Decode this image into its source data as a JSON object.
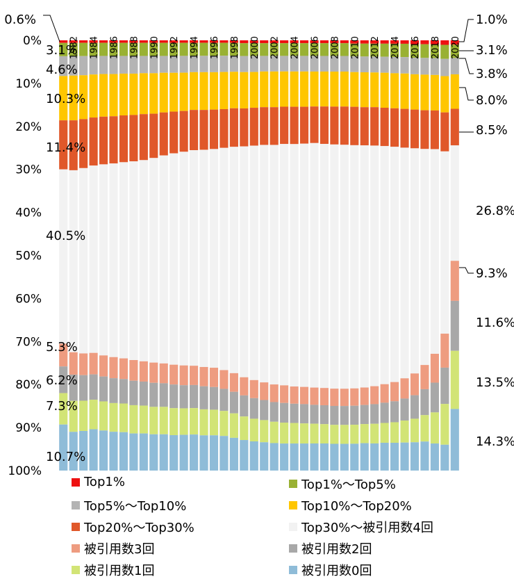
{
  "chart_data": {
    "type": "bar",
    "stacked": true,
    "normalized": true,
    "years": [
      1981,
      1982,
      1983,
      1984,
      1985,
      1986,
      1987,
      1988,
      1989,
      1990,
      1991,
      1992,
      1993,
      1994,
      1995,
      1996,
      1997,
      1998,
      1999,
      2000,
      2001,
      2002,
      2003,
      2004,
      2005,
      2006,
      2007,
      2008,
      2009,
      2010,
      2011,
      2012,
      2013,
      2014,
      2015,
      2016,
      2017,
      2018,
      2019,
      2020
    ],
    "x_tick_labels": [
      "1982",
      "1984",
      "1986",
      "1988",
      "1990",
      "1992",
      "1994",
      "1996",
      "1998",
      "2000",
      "2002",
      "2004",
      "2006",
      "2008",
      "2010",
      "2012",
      "2014",
      "2016",
      "2018",
      "2020"
    ],
    "y_tick_labels": [
      "0%",
      "10%",
      "20%",
      "30%",
      "40%",
      "50%",
      "60%",
      "70%",
      "80%",
      "90%",
      "100%"
    ],
    "ylim": [
      0,
      100
    ],
    "series": [
      {
        "name": "Top1%",
        "color": "#ee1111",
        "values": [
          0.6,
          0.6,
          0.6,
          0.6,
          0.6,
          0.6,
          0.6,
          0.6,
          0.6,
          0.6,
          0.6,
          0.6,
          0.6,
          0.6,
          0.6,
          0.6,
          0.6,
          0.6,
          0.7,
          0.7,
          0.7,
          0.7,
          0.7,
          0.7,
          0.7,
          0.7,
          0.7,
          0.7,
          0.7,
          0.8,
          0.8,
          0.8,
          0.8,
          0.8,
          0.8,
          0.9,
          0.9,
          0.9,
          1.0,
          1.0
        ]
      },
      {
        "name": "Top1%～Top5%",
        "color": "#99b133",
        "values": [
          3.1,
          3.1,
          3.1,
          3.1,
          3.1,
          3.1,
          3.1,
          3.1,
          3.1,
          3.1,
          3.1,
          3.1,
          3.1,
          3.1,
          3.1,
          3.1,
          3.1,
          3.1,
          3.1,
          3.1,
          3.1,
          3.1,
          3.1,
          3.1,
          3.1,
          3.1,
          3.1,
          3.1,
          3.1,
          3.1,
          3.1,
          3.1,
          3.1,
          3.1,
          3.1,
          3.1,
          3.1,
          3.1,
          3.1,
          3.1
        ]
      },
      {
        "name": "Top5%～Top10%",
        "color": "#b4b4b4",
        "values": [
          4.6,
          4.5,
          4.5,
          4.4,
          4.3,
          4.3,
          4.2,
          4.2,
          4.1,
          4.1,
          4.0,
          4.0,
          4.0,
          3.9,
          3.9,
          3.9,
          3.9,
          3.9,
          3.9,
          3.9,
          3.8,
          3.8,
          3.8,
          3.8,
          3.8,
          3.8,
          3.8,
          3.8,
          3.8,
          3.8,
          3.8,
          3.8,
          3.8,
          3.8,
          3.8,
          3.8,
          3.8,
          3.8,
          3.8,
          3.8
        ]
      },
      {
        "name": "Top10%～Top20%",
        "color": "#ffc600",
        "values": [
          10.3,
          10.4,
          10.3,
          10.2,
          10.1,
          10.0,
          9.9,
          9.8,
          9.7,
          9.6,
          9.4,
          9.2,
          9.1,
          9.0,
          9.0,
          8.9,
          8.9,
          8.8,
          8.8,
          8.7,
          8.7,
          8.7,
          8.6,
          8.6,
          8.6,
          8.5,
          8.5,
          8.5,
          8.5,
          8.4,
          8.4,
          8.3,
          8.3,
          8.2,
          8.2,
          8.1,
          8.1,
          8.0,
          8.0,
          8.0
        ]
      },
      {
        "name": "Top20%～Top30%",
        "color": "#e0582a",
        "values": [
          11.4,
          11.6,
          11.5,
          11.4,
          11.3,
          11.2,
          11.1,
          11.0,
          10.9,
          10.5,
          10.2,
          9.9,
          9.7,
          9.6,
          9.5,
          9.4,
          9.3,
          9.3,
          9.2,
          9.2,
          9.2,
          9.2,
          9.1,
          9.1,
          9.0,
          8.9,
          9.1,
          9.2,
          9.3,
          9.3,
          9.2,
          9.2,
          9.1,
          9.0,
          9.0,
          8.9,
          8.8,
          8.7,
          8.6,
          8.5
        ]
      },
      {
        "name": "Top30%～被引用数4回",
        "color": "#f2f2f2",
        "values": [
          40.5,
          42.3,
          43.5,
          44.4,
          45.3,
          45.9,
          46.5,
          47.1,
          47.7,
          48.5,
          49.3,
          50.1,
          50.8,
          51.4,
          51.8,
          52.1,
          53.3,
          54.6,
          55.9,
          57.0,
          57.9,
          58.4,
          58.9,
          59.1,
          59.3,
          59.5,
          59.4,
          59.3,
          59.3,
          58.9,
          58.3,
          57.6,
          56.5,
          55.0,
          53.5,
          51.7,
          49.1,
          46.1,
          40.2,
          26.8
        ]
      },
      {
        "name": "被引用数3回",
        "color": "#ee9c80",
        "values": [
          5.3,
          5.2,
          5.1,
          5.1,
          5.0,
          5.0,
          4.9,
          4.9,
          4.8,
          4.8,
          4.7,
          4.7,
          4.7,
          4.6,
          4.6,
          4.6,
          4.5,
          4.5,
          4.4,
          4.4,
          4.3,
          4.3,
          4.3,
          4.2,
          4.2,
          4.2,
          4.2,
          4.2,
          4.2,
          4.2,
          4.2,
          4.3,
          4.4,
          4.5,
          4.7,
          5.0,
          5.5,
          6.5,
          7.5,
          9.3
        ]
      },
      {
        "name": "被引用数2回",
        "color": "#a8a8a8",
        "values": [
          6.2,
          6.1,
          6.0,
          6.0,
          5.9,
          5.9,
          5.8,
          5.8,
          5.7,
          5.7,
          5.6,
          5.6,
          5.5,
          5.5,
          5.5,
          5.4,
          5.3,
          5.2,
          5.1,
          5.0,
          4.9,
          4.8,
          4.8,
          4.7,
          4.7,
          4.6,
          4.6,
          4.6,
          4.6,
          4.6,
          4.6,
          4.7,
          4.8,
          4.9,
          5.1,
          5.4,
          5.9,
          6.7,
          8.0,
          11.6
        ]
      },
      {
        "name": "被引用数1回",
        "color": "#d2e476",
        "values": [
          7.3,
          7.2,
          7.1,
          7.0,
          6.9,
          6.8,
          6.8,
          6.7,
          6.6,
          6.5,
          6.5,
          6.4,
          6.3,
          6.3,
          6.2,
          6.1,
          6.0,
          5.9,
          5.7,
          5.5,
          5.4,
          5.2,
          5.1,
          5.0,
          4.9,
          4.8,
          4.7,
          4.6,
          4.6,
          4.6,
          4.6,
          4.7,
          4.7,
          4.8,
          5.1,
          5.4,
          6.0,
          7.0,
          9.0,
          13.5
        ]
      },
      {
        "name": "被引用数0回",
        "color": "#8fbcd8",
        "values": [
          10.7,
          9.0,
          9.3,
          9.8,
          9.5,
          9.2,
          9.1,
          8.8,
          8.8,
          8.6,
          8.6,
          8.4,
          8.5,
          8.6,
          8.4,
          8.4,
          8.3,
          7.9,
          7.4,
          7.1,
          6.9,
          6.7,
          6.6,
          6.6,
          6.6,
          6.6,
          6.6,
          6.5,
          6.5,
          6.5,
          6.6,
          6.5,
          6.6,
          6.5,
          6.5,
          6.5,
          6.6,
          6.1,
          5.7,
          14.3
        ]
      }
    ],
    "left_labels": [
      "0.6%",
      "3.1%",
      "4.6%",
      "10.3%",
      "11.4%",
      "40.5%",
      "5.3%",
      "6.2%",
      "7.3%",
      "10.7%"
    ],
    "right_labels": [
      "1.0%",
      "3.1%",
      "3.8%",
      "8.0%",
      "8.5%",
      "26.8%",
      "9.3%",
      "11.6%",
      "13.5%",
      "14.3%"
    ]
  },
  "legend": [
    {
      "label": "Top1%",
      "color": "#ee1111"
    },
    {
      "label": "Top1%～Top5%",
      "color": "#99b133"
    },
    {
      "label": "Top5%～Top10%",
      "color": "#b4b4b4"
    },
    {
      "label": "Top10%～Top20%",
      "color": "#ffc600"
    },
    {
      "label": "Top20%～Top30%",
      "color": "#e0582a"
    },
    {
      "label": "Top30%～被引用数4回",
      "color": "#f2f2f2"
    },
    {
      "label": "被引用数3回",
      "color": "#ee9c80"
    },
    {
      "label": "被引用数2回",
      "color": "#a8a8a8"
    },
    {
      "label": "被引用数1回",
      "color": "#d2e476"
    },
    {
      "label": "被引用数0回",
      "color": "#8fbcd8"
    }
  ]
}
